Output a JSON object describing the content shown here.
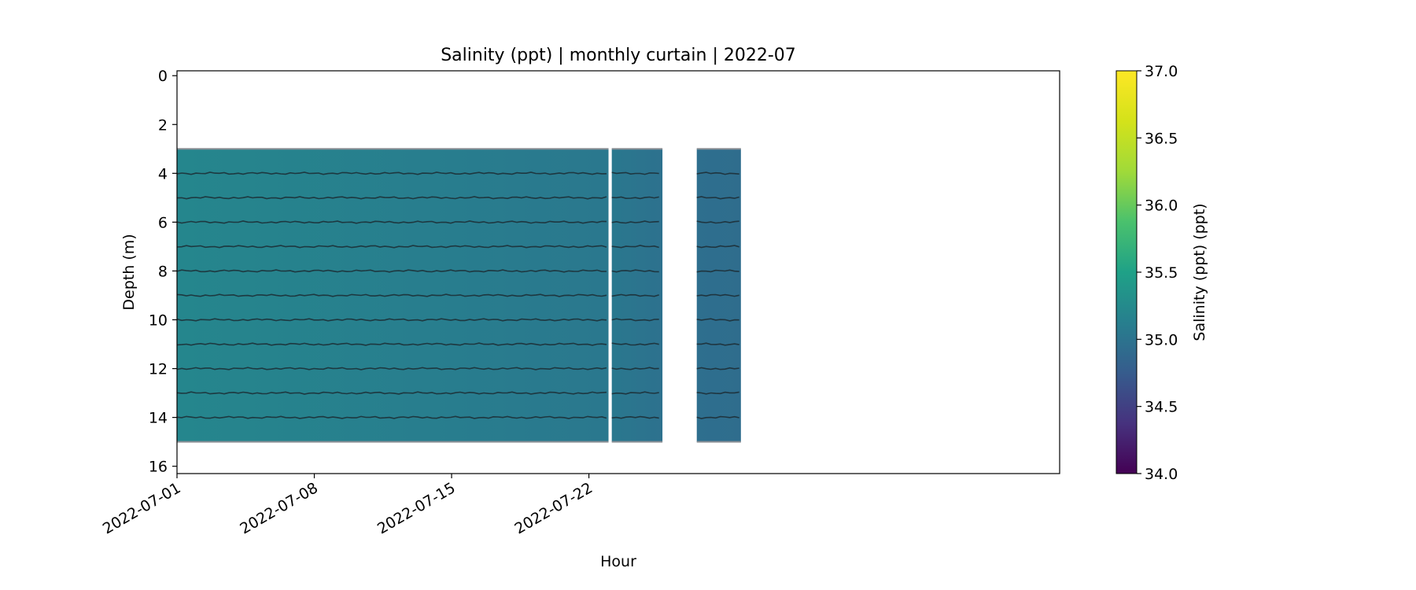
{
  "chart_data": {
    "type": "heatmap",
    "title": "Salinity (ppt) | monthly curtain | 2022-07",
    "xlabel": "Hour",
    "ylabel": "Depth (m)",
    "colorbar_label": "Salinity (ppt) (ppt)",
    "colormap": "viridis",
    "clim": [
      34.0,
      37.0
    ],
    "colorbar_ticks": [
      "34.0",
      "34.5",
      "35.0",
      "35.5",
      "36.0",
      "36.5",
      "37.0"
    ],
    "xlim": [
      "2022-07-01",
      "2022-08-15"
    ],
    "x_ticks": [
      "2022-07-01",
      "2022-07-08",
      "2022-07-15",
      "2022-07-22"
    ],
    "ylim": [
      16.3,
      -0.2
    ],
    "y_ticks": [
      0,
      2,
      4,
      6,
      8,
      10,
      12,
      14,
      16
    ],
    "y_inverted": true,
    "depth_range": [
      3,
      15
    ],
    "contour_depths": [
      4,
      5,
      6,
      7,
      8,
      9,
      10,
      11,
      12,
      13,
      14
    ],
    "data_segments": [
      {
        "start": "2022-07-01",
        "end": "2022-07-23 00:00",
        "salinity_start": 35.2,
        "salinity_end": 35.05
      },
      {
        "start": "2022-07-23 04:00",
        "end": "2022-07-25 18:00",
        "salinity_start": 35.05,
        "salinity_end": 34.98
      },
      {
        "start": "2022-07-27 12:00",
        "end": "2022-07-29 18:00",
        "salinity_start": 34.95,
        "salinity_end": 34.93
      }
    ],
    "grid": false
  }
}
